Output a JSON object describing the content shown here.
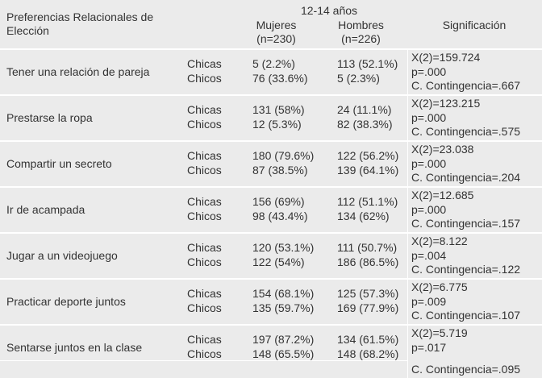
{
  "header": {
    "title": "Preferencias Relacionales de Elección",
    "age_group": "12-14 años",
    "columns": [
      {
        "label": "Mujeres",
        "n": "(n=230)"
      },
      {
        "label": "Hombres",
        "n": "(n=226)"
      }
    ],
    "significance": "Significación"
  },
  "rows": [
    {
      "label": "Tener una relación de pareja",
      "groups": [
        "Chicas",
        "Chicos"
      ],
      "mujeres": [
        "5 (2.2%)",
        "76 (33.6%)"
      ],
      "hombres": [
        "113 (52.1%)",
        "5 (2.3%)"
      ],
      "significance": [
        "X(2)=159.724",
        "p=.000",
        "C. Contingencia=.667"
      ]
    },
    {
      "label": "Prestarse la ropa",
      "groups": [
        "Chicas",
        "Chicos"
      ],
      "mujeres": [
        "131 (58%)",
        "12 (5.3%)"
      ],
      "hombres": [
        "24 (11.1%)",
        "82 (38.3%)"
      ],
      "significance": [
        "X(2)=123.215",
        "p=.000",
        "C. Contingencia=.575"
      ]
    },
    {
      "label": "Compartir un secreto",
      "groups": [
        "Chicas",
        "Chicos"
      ],
      "mujeres": [
        "180 (79.6%)",
        "87 (38.5%)"
      ],
      "hombres": [
        "122 (56.2%)",
        "139 (64.1%)"
      ],
      "significance": [
        "X(2)=23.038",
        "p=.000",
        "C. Contingencia=.204"
      ]
    },
    {
      "label": "Ir de acampada",
      "groups": [
        "Chicas",
        "Chicos"
      ],
      "mujeres": [
        "156 (69%)",
        "98 (43.4%)"
      ],
      "hombres": [
        "112 (51.1%)",
        "134 (62%)"
      ],
      "significance": [
        "X(2)=12.685",
        "p=.000",
        "C. Contingencia=.157"
      ]
    },
    {
      "label": "Jugar a un videojuego",
      "groups": [
        "Chicas",
        "Chicos"
      ],
      "mujeres": [
        "120 (53.1%)",
        "122 (54%)"
      ],
      "hombres": [
        "111 (50.7%)",
        "186 (86.5%)"
      ],
      "significance": [
        "X(2)=8.122",
        "p=.004",
        "C. Contingencia=.122"
      ]
    },
    {
      "label": "Practicar deporte juntos",
      "groups": [
        "Chicas",
        "Chicos"
      ],
      "mujeres": [
        "154 (68.1%)",
        "135 (59.7%)"
      ],
      "hombres": [
        "125 (57.3%)",
        "169 (77.9%)"
      ],
      "significance": [
        "X(2)=6.775",
        "p=.009",
        "C. Contingencia=.107"
      ]
    },
    {
      "label": "Sentarse juntos en la clase",
      "groups": [
        "Chicas",
        "Chicos"
      ],
      "mujeres": [
        "197 (87.2%)",
        "148 (65.5%)"
      ],
      "hombres": [
        "134 (61.5%)",
        "148 (68.2%)"
      ],
      "significance": [
        "X(2)=5.719",
        "p=.017",
        "C. Contingencia=.095"
      ]
    }
  ]
}
